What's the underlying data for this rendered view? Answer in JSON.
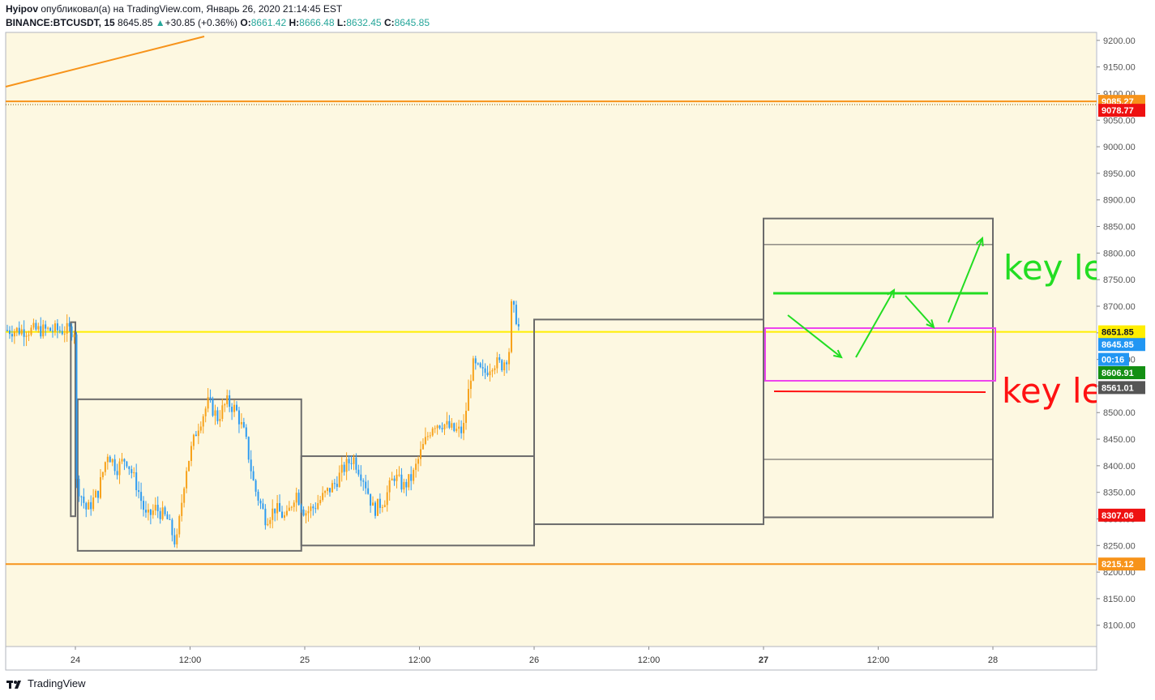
{
  "header": {
    "author": "Hyipov",
    "published_text": "опубликовал(а) на TradingView.com, Январь 26, 2020 21:14:45 EST",
    "symbol": "BINANCE:BTCUSDT, 15",
    "last": "8645.85",
    "change": "+30.85 (+0.36%)",
    "o_label": "O:",
    "o_value": "8661.42",
    "h_label": "H:",
    "h_value": "8666.48",
    "l_label": "L:",
    "l_value": "8632.45",
    "c_label": "C:",
    "c_value": "8645.85"
  },
  "footer": {
    "brand": "TradingView"
  },
  "annotations": {
    "key_level_green": "key le",
    "key_level_red": "key le"
  },
  "colors": {
    "background": "#fdf8e1",
    "up": "#f7a21b",
    "down": "#2e9bf0",
    "orange_line": "#f7931a",
    "yellow_line": "#ffee00",
    "green": "#22dd22",
    "red": "#ff1111",
    "magenta": "#ee44ee",
    "box": "#6b6b6b"
  },
  "chart_data": {
    "type": "candlestick",
    "ylim": [
      8060,
      9215
    ],
    "y_ticks": [
      "8100.00",
      "8150.00",
      "8200.00",
      "8250.00",
      "8300.00",
      "8350.00",
      "8400.00",
      "8450.00",
      "8500.00",
      "8550.00",
      "8600.00",
      "8650.00",
      "8700.00",
      "8750.00",
      "8800.00",
      "8850.00",
      "8900.00",
      "8950.00",
      "9000.00",
      "9050.00",
      "9100.00",
      "9150.00",
      "9200.00"
    ],
    "x_ticks": [
      {
        "label": "24",
        "bold": false
      },
      {
        "label": "12:00",
        "bold": false
      },
      {
        "label": "25",
        "bold": false
      },
      {
        "label": "12:00",
        "bold": false
      },
      {
        "label": "26",
        "bold": false
      },
      {
        "label": "12:00",
        "bold": false
      },
      {
        "label": "27",
        "bold": true
      },
      {
        "label": "12:00",
        "bold": false
      },
      {
        "label": "28",
        "bold": false
      }
    ],
    "price_labels": [
      {
        "value": "9085.27",
        "price": 9085.27,
        "bg": "#f7931a",
        "fg": "#ffffff"
      },
      {
        "value": "9078.77",
        "price": 9068.5,
        "bg": "#ee1111",
        "fg": "#ffffff"
      },
      {
        "value": "8651.85",
        "price": 8651.85,
        "bg": "#ffee00",
        "fg": "#131722"
      },
      {
        "value": "8645.85",
        "price": 8628,
        "bg": "#2196f3",
        "fg": "#ffffff"
      },
      {
        "value": "00:16",
        "price": 8600,
        "bg": "#2196f3",
        "fg": "#ffffff"
      },
      {
        "value": "8606.91",
        "price": 8575,
        "bg": "#138f13",
        "fg": "#ffffff"
      },
      {
        "value": "8561.01",
        "price": 8547,
        "bg": "#555555",
        "fg": "#ffffff"
      },
      {
        "value": "8307.06",
        "price": 8307.06,
        "bg": "#ee1111",
        "fg": "#ffffff"
      },
      {
        "value": "8215.12",
        "price": 8215.12,
        "bg": "#f7931a",
        "fg": "#ffffff"
      }
    ],
    "key_prices": [
      9085.27,
      8651.85,
      8215.12
    ],
    "path_series": [
      {
        "x": 0.0,
        "y": 8375
      },
      {
        "x": 0.05,
        "y": 8315
      },
      {
        "x": 0.1,
        "y": 8352
      },
      {
        "x": 0.14,
        "y": 8425
      },
      {
        "x": 0.18,
        "y": 8395
      },
      {
        "x": 0.22,
        "y": 8415
      },
      {
        "x": 0.27,
        "y": 8360
      },
      {
        "x": 0.31,
        "y": 8300
      },
      {
        "x": 0.35,
        "y": 8320
      },
      {
        "x": 0.4,
        "y": 8300
      },
      {
        "x": 0.44,
        "y": 8250
      },
      {
        "x": 0.48,
        "y": 8390
      },
      {
        "x": 0.53,
        "y": 8470
      },
      {
        "x": 0.58,
        "y": 8520
      },
      {
        "x": 0.62,
        "y": 8490
      },
      {
        "x": 0.66,
        "y": 8520
      },
      {
        "x": 0.7,
        "y": 8505
      },
      {
        "x": 0.74,
        "y": 8455
      },
      {
        "x": 0.78,
        "y": 8360
      },
      {
        "x": 0.83,
        "y": 8300
      },
      {
        "x": 0.87,
        "y": 8320
      },
      {
        "x": 0.92,
        "y": 8300
      },
      {
        "x": 0.96,
        "y": 8352
      },
      {
        "x": 1.0,
        "y": 8312
      },
      {
        "x": 1.04,
        "y": 8322
      },
      {
        "x": 1.08,
        "y": 8342
      },
      {
        "x": 1.13,
        "y": 8366
      },
      {
        "x": 1.17,
        "y": 8395
      },
      {
        "x": 1.21,
        "y": 8416
      },
      {
        "x": 1.26,
        "y": 8373
      },
      {
        "x": 1.3,
        "y": 8316
      },
      {
        "x": 1.35,
        "y": 8338
      },
      {
        "x": 1.39,
        "y": 8382
      },
      {
        "x": 1.43,
        "y": 8360
      },
      {
        "x": 1.47,
        "y": 8380
      },
      {
        "x": 1.51,
        "y": 8430
      },
      {
        "x": 1.56,
        "y": 8480
      },
      {
        "x": 1.6,
        "y": 8480
      },
      {
        "x": 1.65,
        "y": 8466
      },
      {
        "x": 1.69,
        "y": 8465
      },
      {
        "x": 1.73,
        "y": 8590
      },
      {
        "x": 1.78,
        "y": 8572
      },
      {
        "x": 1.82,
        "y": 8595
      },
      {
        "x": 1.86,
        "y": 8590
      },
      {
        "x": 1.89,
        "y": 8612
      },
      {
        "x": 1.9,
        "y": 8700
      },
      {
        "x": 1.92,
        "y": 8682
      },
      {
        "x": 1.935,
        "y": 8655
      }
    ],
    "boxes": [
      {
        "x0": -0.02,
        "x1": 0.0,
        "top": 8670,
        "bottom": 8305
      },
      {
        "x0": 0.01,
        "x1": 0.985,
        "top": 8525,
        "bottom": 8240
      },
      {
        "x0": 0.985,
        "x1": 2.0,
        "top": 8418,
        "bottom": 8250
      },
      {
        "x0": 2.0,
        "x1": 3.0,
        "top": 8675,
        "bottom": 8290
      },
      {
        "x0": 3.0,
        "x1": 4.0,
        "top": 8865,
        "bottom": 8303,
        "inner_top": 8816,
        "inner_bottom": 8412
      }
    ]
  }
}
